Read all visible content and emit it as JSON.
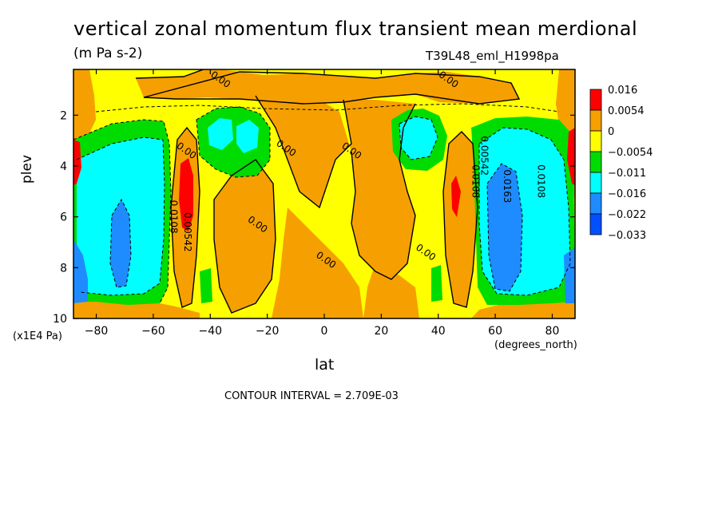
{
  "header": {
    "title": "vertical zonal momentum flux transient mean merdional",
    "units": "(m Pa s-2)",
    "run_name": "T39L48_eml_H1998pa"
  },
  "footer": {
    "contour_interval": "CONTOUR INTERVAL = 2.709E-03"
  },
  "chart_data": {
    "type": "heatmap",
    "xlabel": "lat",
    "ylabel": "plev",
    "x_units": "(degrees_north)",
    "y_units": "(x1E4 Pa)",
    "xlim": [
      -88,
      88
    ],
    "ylim": [
      10,
      0.2
    ],
    "x_ticks": [
      -80,
      -60,
      -40,
      -20,
      0,
      20,
      40,
      60,
      80
    ],
    "x_tick_labels": [
      "−80",
      "−60",
      "−40",
      "−20",
      "0",
      "20",
      "40",
      "60",
      "80"
    ],
    "y_ticks": [
      2,
      4,
      6,
      8,
      10
    ],
    "y_tick_labels": [
      "2",
      "4",
      "6",
      "8",
      "10"
    ],
    "legend": {
      "placement": "right",
      "labels": [
        "0.016",
        "0.0054",
        "0",
        "−0.0054",
        "−0.011",
        "−0.016",
        "−0.022",
        "−0.033"
      ],
      "colors": [
        "#ff0000",
        "#f5a000",
        "#ffff00",
        "#00dc00",
        "#00ffff",
        "#1e8cff",
        "#0050ff"
      ]
    },
    "contour_labels": [
      {
        "text": "0.00",
        "lat": -37,
        "plev": 0.7
      },
      {
        "text": "0.00",
        "lat": 43,
        "plev": 0.7
      },
      {
        "text": "0.00",
        "lat": -14,
        "plev": 3.4
      },
      {
        "text": "0.00",
        "lat": 9,
        "plev": 3.5
      },
      {
        "text": "0.00",
        "lat": -24,
        "plev": 6.4
      },
      {
        "text": "0.00",
        "lat": 0,
        "plev": 7.8
      },
      {
        "text": "0.00",
        "lat": 35,
        "plev": 7.5
      },
      {
        "text": "0.00",
        "lat": -49,
        "plev": 3.5
      },
      {
        "text": "0.0108",
        "lat": -54,
        "plev": 6.0
      },
      {
        "text": "0.00542",
        "lat": -49,
        "plev": 6.6
      },
      {
        "text": "0.00542",
        "lat": 55,
        "plev": 3.6
      },
      {
        "text": "0.0108",
        "lat": 52,
        "plev": 4.6
      },
      {
        "text": "0.0163",
        "lat": 63,
        "plev": 4.8
      },
      {
        "text": "0.0108",
        "lat": 75,
        "plev": 4.6
      }
    ]
  }
}
